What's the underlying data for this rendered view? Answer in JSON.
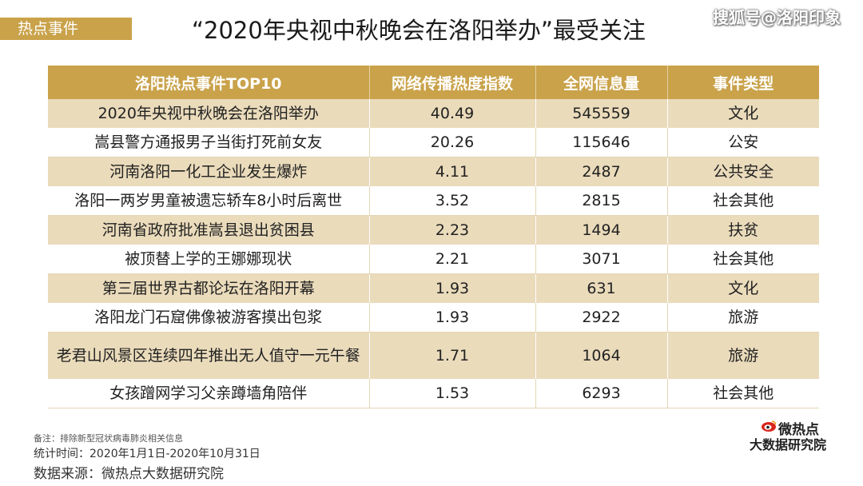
{
  "header": {
    "tag": "热点事件",
    "title": "“2020年央视中秋晚会在洛阳举办”最受关注",
    "watermark": "搜狐号@洛阳印象"
  },
  "table": {
    "columns": [
      "洛阳热点事件TOP10",
      "网络传播热度指数",
      "全网信息量",
      "事件类型"
    ],
    "rows": [
      {
        "event": "2020年央视中秋晚会在洛阳举办",
        "heat": "40.49",
        "volume": "545559",
        "type": "文化"
      },
      {
        "event": "嵩县警方通报男子当街打死前女友",
        "heat": "20.26",
        "volume": "115646",
        "type": "公安"
      },
      {
        "event": "河南洛阳一化工企业发生爆炸",
        "heat": "4.11",
        "volume": "2487",
        "type": "公共安全"
      },
      {
        "event": "洛阳一两岁男童被遗忘轿车8小时后离世",
        "heat": "3.52",
        "volume": "2815",
        "type": "社会其他"
      },
      {
        "event": "河南省政府批准嵩县退出贫困县",
        "heat": "2.23",
        "volume": "1494",
        "type": "扶贫"
      },
      {
        "event": "被顶替上学的王娜娜现状",
        "heat": "2.21",
        "volume": "3071",
        "type": "社会其他"
      },
      {
        "event": "第三届世界古都论坛在洛阳开幕",
        "heat": "1.93",
        "volume": "631",
        "type": "文化"
      },
      {
        "event": "洛阳龙门石窟佛像被游客摸出包浆",
        "heat": "1.93",
        "volume": "2922",
        "type": "旅游"
      },
      {
        "event": "老君山风景区连续四年推出无人值守一元午餐",
        "heat": "1.71",
        "volume": "1064",
        "type": "旅游"
      },
      {
        "event": "女孩蹭网学习父亲蹲墙角陪伴",
        "heat": "1.53",
        "volume": "6293",
        "type": "社会其他"
      }
    ]
  },
  "footer": {
    "note": "备注：排除新型冠状病毒肺炎相关信息",
    "period": "统计时间：2020年1月1日-2020年10月31日",
    "source": "数据来源：微热点大数据研究院"
  },
  "logo": {
    "line1": "微热点",
    "line2": "大数据研究院"
  },
  "colors": {
    "accent": "#c9a24a",
    "stripe": "#eadbbb"
  }
}
